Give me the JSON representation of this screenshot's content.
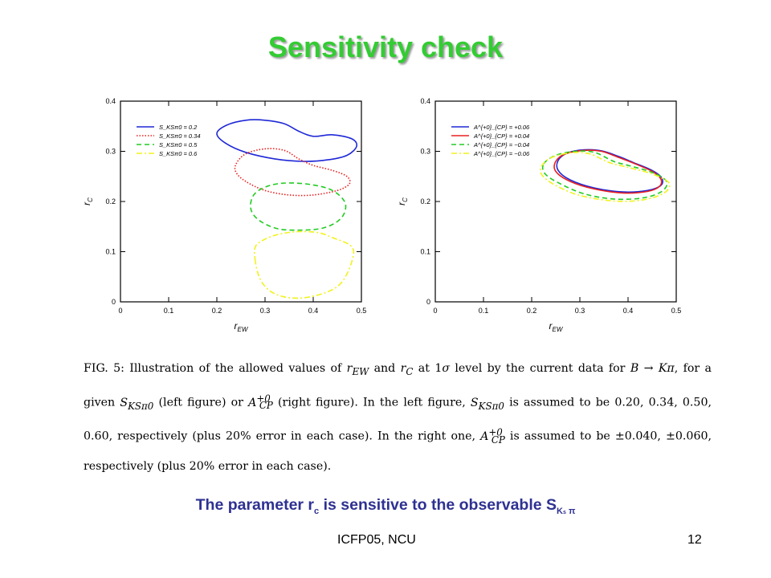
{
  "slide": {
    "title": "Sensitivity check",
    "subline": {
      "text_before": "The parameter r",
      "text_sub_c": "c",
      "text_mid": " is sensitive to the observable S",
      "text_sub_ks": "K",
      "text_sub_s": "s",
      "text_pi": " π"
    },
    "footer_left": "ICFP05, NCU",
    "page_number": "12",
    "colors": {
      "title": "#33cc33",
      "subline": "#2e3192",
      "blue": "#1f28d6",
      "red": "#e82020",
      "green": "#22cc22",
      "yellow": "#f2f21e"
    }
  },
  "caption": {
    "fig_label": "FIG. 5:",
    "text_1": " Illustration of the allowed values of ",
    "var_rew": "r",
    "var_rew_sub": "EW",
    "text_2": " and ",
    "var_rc": "r",
    "var_rc_sub": "C",
    "text_3": " at 1",
    "sigma": "σ",
    "text_4": " level by the current data for ",
    "process": "B → Kπ",
    "text_5": ", for a given ",
    "var_sk": "S",
    "var_sk_sub": "KSπ0",
    "text_6": " (left figure) or ",
    "var_acp": "A",
    "var_acp_sup": "+0",
    "var_acp_sub": "CP",
    "text_7": " (right figure). In the left figure, ",
    "text_8": " is assumed to be 0.20, 0.34, 0.50, 0.60, respectively (plus 20% error in each case). In the right one, ",
    "text_9": " is assumed to be ±0.040, ±0.060, respectively (plus 20% error in each case)."
  },
  "chart_data": [
    {
      "type": "contour",
      "panel": "left",
      "xlabel": "r_EW",
      "ylabel": "r_C",
      "xlim": [
        0,
        0.5
      ],
      "ylim": [
        0,
        0.4
      ],
      "xticks": [
        "0",
        "0.1",
        "0.2",
        "0.3",
        "0.4",
        "0.5"
      ],
      "yticks": [
        "0",
        "0.1",
        "0.2",
        "0.3",
        "0.4"
      ],
      "legend_position": "top-left",
      "series": [
        {
          "name": "S_KSπ0 = 0.2",
          "color": "#1f28d6",
          "dash": "solid",
          "points": [
            [
              0.2,
              0.335
            ],
            [
              0.22,
              0.352
            ],
            [
              0.26,
              0.362
            ],
            [
              0.3,
              0.362
            ],
            [
              0.34,
              0.355
            ],
            [
              0.37,
              0.34
            ],
            [
              0.4,
              0.33
            ],
            [
              0.44,
              0.333
            ],
            [
              0.48,
              0.325
            ],
            [
              0.49,
              0.31
            ],
            [
              0.47,
              0.292
            ],
            [
              0.43,
              0.283
            ],
            [
              0.38,
              0.28
            ],
            [
              0.32,
              0.285
            ],
            [
              0.26,
              0.298
            ],
            [
              0.22,
              0.315
            ]
          ]
        },
        {
          "name": "S_KSπ0 = 0.34",
          "color": "#e82020",
          "dash": "dotted",
          "points": [
            [
              0.24,
              0.275
            ],
            [
              0.26,
              0.295
            ],
            [
              0.3,
              0.305
            ],
            [
              0.34,
              0.302
            ],
            [
              0.37,
              0.285
            ],
            [
              0.4,
              0.272
            ],
            [
              0.44,
              0.262
            ],
            [
              0.47,
              0.25
            ],
            [
              0.475,
              0.235
            ],
            [
              0.45,
              0.222
            ],
            [
              0.4,
              0.213
            ],
            [
              0.35,
              0.213
            ],
            [
              0.3,
              0.222
            ],
            [
              0.26,
              0.24
            ],
            [
              0.24,
              0.258
            ]
          ]
        },
        {
          "name": "S_KSπ0 = 0.5",
          "color": "#22cc22",
          "dash": "dashed",
          "points": [
            [
              0.27,
              0.195
            ],
            [
              0.28,
              0.217
            ],
            [
              0.31,
              0.232
            ],
            [
              0.35,
              0.237
            ],
            [
              0.4,
              0.233
            ],
            [
              0.44,
              0.222
            ],
            [
              0.465,
              0.2
            ],
            [
              0.465,
              0.178
            ],
            [
              0.45,
              0.16
            ],
            [
              0.42,
              0.147
            ],
            [
              0.38,
              0.143
            ],
            [
              0.33,
              0.145
            ],
            [
              0.295,
              0.158
            ],
            [
              0.275,
              0.175
            ]
          ]
        },
        {
          "name": "S_KSπ0 = 0.6",
          "color": "#f2f21e",
          "dash": "dashdot",
          "points": [
            [
              0.28,
              0.08
            ],
            [
              0.28,
              0.11
            ],
            [
              0.3,
              0.125
            ],
            [
              0.33,
              0.135
            ],
            [
              0.37,
              0.14
            ],
            [
              0.41,
              0.138
            ],
            [
              0.44,
              0.128
            ],
            [
              0.48,
              0.11
            ],
            [
              0.48,
              0.08
            ],
            [
              0.46,
              0.04
            ],
            [
              0.43,
              0.02
            ],
            [
              0.38,
              0.008
            ],
            [
              0.34,
              0.01
            ],
            [
              0.31,
              0.022
            ],
            [
              0.29,
              0.045
            ]
          ]
        }
      ]
    },
    {
      "type": "contour",
      "panel": "right",
      "xlabel": "r_EW",
      "ylabel": "r_C",
      "xlim": [
        0,
        0.5
      ],
      "ylim": [
        0,
        0.4
      ],
      "xticks": [
        "0",
        "0.1",
        "0.2",
        "0.3",
        "0.4",
        "0.5"
      ],
      "yticks": [
        "0",
        "0.1",
        "0.2",
        "0.3",
        "0.4"
      ],
      "legend_position": "top-left",
      "series": [
        {
          "name": "A^{+0}_{CP} = +0.06",
          "color": "#1f28d6",
          "dash": "solid",
          "points": [
            [
              0.255,
              0.282
            ],
            [
              0.275,
              0.297
            ],
            [
              0.31,
              0.303
            ],
            [
              0.345,
              0.301
            ],
            [
              0.38,
              0.29
            ],
            [
              0.41,
              0.278
            ],
            [
              0.45,
              0.262
            ],
            [
              0.47,
              0.247
            ],
            [
              0.468,
              0.232
            ],
            [
              0.44,
              0.222
            ],
            [
              0.39,
              0.219
            ],
            [
              0.33,
              0.227
            ],
            [
              0.28,
              0.243
            ],
            [
              0.255,
              0.262
            ]
          ]
        },
        {
          "name": "A^{+0}_{CP} = +0.04",
          "color": "#e82020",
          "dash": "solid",
          "points": [
            [
              0.25,
              0.28
            ],
            [
              0.27,
              0.295
            ],
            [
              0.31,
              0.302
            ],
            [
              0.345,
              0.3
            ],
            [
              0.38,
              0.288
            ],
            [
              0.41,
              0.277
            ],
            [
              0.45,
              0.26
            ],
            [
              0.468,
              0.245
            ],
            [
              0.465,
              0.23
            ],
            [
              0.44,
              0.22
            ],
            [
              0.39,
              0.217
            ],
            [
              0.33,
              0.225
            ],
            [
              0.28,
              0.24
            ],
            [
              0.25,
              0.26
            ]
          ]
        },
        {
          "name": "A^{+0}_{CP} = −0.04",
          "color": "#22cc22",
          "dash": "dashed",
          "points": [
            [
              0.225,
              0.275
            ],
            [
              0.25,
              0.292
            ],
            [
              0.29,
              0.3
            ],
            [
              0.33,
              0.298
            ],
            [
              0.37,
              0.28
            ],
            [
              0.4,
              0.272
            ],
            [
              0.45,
              0.258
            ],
            [
              0.48,
              0.24
            ],
            [
              0.47,
              0.22
            ],
            [
              0.43,
              0.207
            ],
            [
              0.37,
              0.205
            ],
            [
              0.31,
              0.215
            ],
            [
              0.26,
              0.235
            ],
            [
              0.228,
              0.255
            ]
          ]
        },
        {
          "name": "A^{+0}_{CP} = −0.06",
          "color": "#f2f21e",
          "dash": "dashdot",
          "points": [
            [
              0.22,
              0.27
            ],
            [
              0.24,
              0.287
            ],
            [
              0.28,
              0.297
            ],
            [
              0.32,
              0.295
            ],
            [
              0.36,
              0.278
            ],
            [
              0.4,
              0.268
            ],
            [
              0.45,
              0.255
            ],
            [
              0.485,
              0.237
            ],
            [
              0.475,
              0.217
            ],
            [
              0.43,
              0.203
            ],
            [
              0.37,
              0.201
            ],
            [
              0.3,
              0.212
            ],
            [
              0.25,
              0.232
            ],
            [
              0.222,
              0.252
            ]
          ]
        }
      ]
    }
  ]
}
